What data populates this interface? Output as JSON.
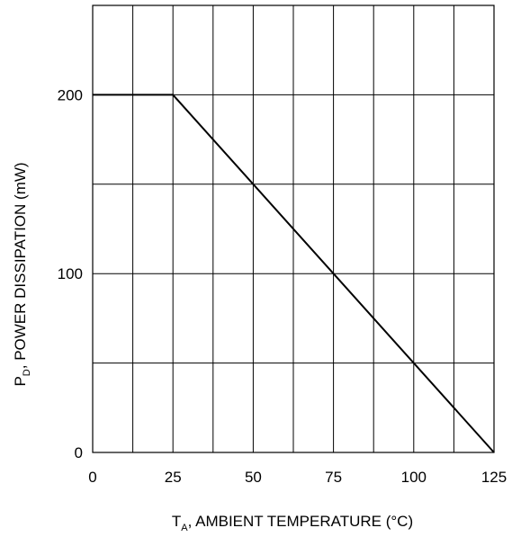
{
  "chart_data": {
    "type": "line",
    "xlabel_main": "T",
    "xlabel_sub": "A",
    "xlabel_rest": ", AMBIENT TEMPERATURE (°C)",
    "ylabel_main": "P",
    "ylabel_sub": "D",
    "ylabel_rest": ", POWER DISSIPATION (mW)",
    "xlim": [
      0,
      125
    ],
    "ylim": [
      0,
      250
    ],
    "x_ticks": [
      0,
      25,
      50,
      75,
      100,
      125
    ],
    "x_tick_labels": [
      "0",
      "25",
      "50",
      "75",
      "100",
      "125"
    ],
    "x_gridlines": [
      0,
      12.5,
      25,
      37.5,
      50,
      62.5,
      75,
      87.5,
      100,
      112.5,
      125
    ],
    "y_ticks": [
      0,
      100,
      200
    ],
    "y_tick_labels": [
      "0",
      "100",
      "200"
    ],
    "y_gridlines": [
      0,
      50,
      100,
      150,
      200,
      250
    ],
    "grid": true,
    "series": [
      {
        "x": [
          0,
          25,
          125
        ],
        "y": [
          200,
          200,
          0
        ]
      }
    ]
  }
}
